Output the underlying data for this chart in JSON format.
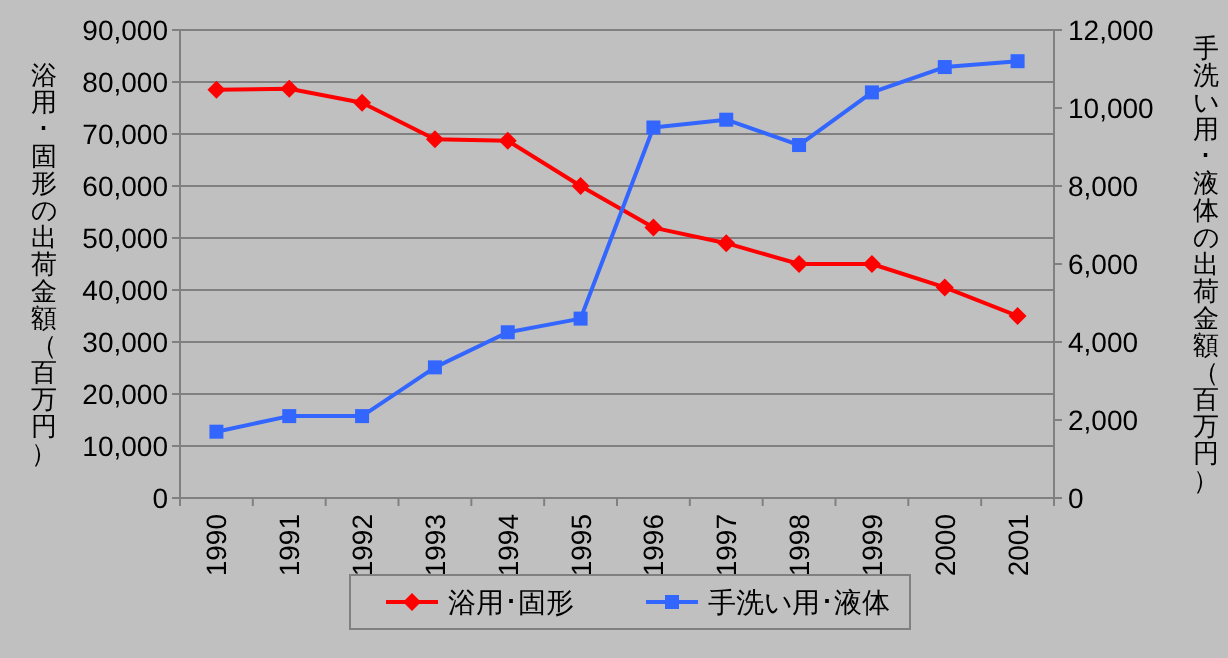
{
  "chart_data": {
    "type": "line",
    "categories": [
      "1990",
      "1991",
      "1992",
      "1993",
      "1994",
      "1995",
      "1996",
      "1997",
      "1998",
      "1999",
      "2000",
      "2001"
    ],
    "ylabel": "浴用･固形の出荷金額（百万円）",
    "y2label": "手洗い用･液体の出荷金額（百万円）",
    "ylim": [
      0,
      90000
    ],
    "yticks": [
      {
        "value": 0,
        "label": "0"
      },
      {
        "value": 10000,
        "label": "10,000"
      },
      {
        "value": 20000,
        "label": "20,000"
      },
      {
        "value": 30000,
        "label": "30,000"
      },
      {
        "value": 40000,
        "label": "40,000"
      },
      {
        "value": 50000,
        "label": "50,000"
      },
      {
        "value": 60000,
        "label": "60,000"
      },
      {
        "value": 70000,
        "label": "70,000"
      },
      {
        "value": 80000,
        "label": "80,000"
      },
      {
        "value": 90000,
        "label": "90,000"
      }
    ],
    "y2lim": [
      0,
      12000
    ],
    "y2ticks": [
      {
        "value": 0,
        "label": "0"
      },
      {
        "value": 2000,
        "label": "2,000"
      },
      {
        "value": 4000,
        "label": "4,000"
      },
      {
        "value": 6000,
        "label": "6,000"
      },
      {
        "value": 8000,
        "label": "8,000"
      },
      {
        "value": 10000,
        "label": "10,000"
      },
      {
        "value": 12000,
        "label": "12,000"
      }
    ],
    "grid": "y",
    "legend": "bottom",
    "series": [
      {
        "name": "浴用･固形",
        "color": "#ff0000",
        "marker": "diamond",
        "values": [
          78500,
          78700,
          76000,
          69000,
          68700,
          60000,
          52000,
          49000,
          45000,
          45000,
          40500,
          35000
        ]
      },
      {
        "name": "手洗い用･液体",
        "color": "#3366ff",
        "marker": "square",
        "axis": "y2",
        "values": [
          1700,
          2100,
          2100,
          3350,
          4250,
          4600,
          9500,
          9700,
          9050,
          10400,
          11050,
          11200
        ]
      }
    ]
  }
}
